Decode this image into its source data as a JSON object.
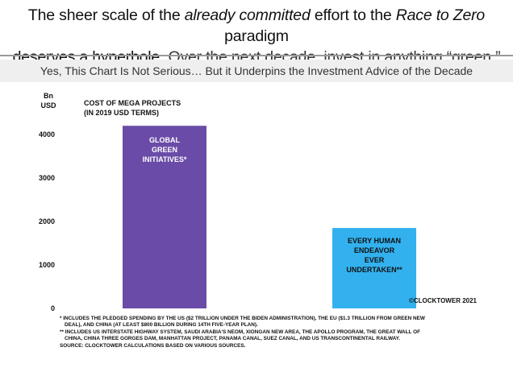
{
  "headline": {
    "part1": "The sheer scale of the ",
    "part2_italic": "already committed",
    "part3": " effort to the ",
    "part4_italic": "Race to Zero",
    "part5": " paradigm",
    "part6": "deserves a hyperbole.",
    "part7": " Over the next decade, invest in anything “green.”"
  },
  "subtitle": "Yes, This Chart Is Not Serious… But it Underpins the Investment Advice of the Decade",
  "colors": {
    "bar_green": "#6a4ca8",
    "bar_human": "#33b1ef",
    "rule": "#9a9a9a",
    "band": "#efefef"
  },
  "chart_data": {
    "type": "bar",
    "title": "COST OF MEGA PROJECTS (IN 2019 USD TERMS)",
    "title_lines": [
      "COST OF MEGA PROJECTS",
      "(IN 2019 USD TERMS)"
    ],
    "ylabel_lines": [
      "Bn",
      "USD"
    ],
    "ylim": [
      0,
      4500
    ],
    "yticks": [
      0,
      1000,
      2000,
      3000,
      4000
    ],
    "grid": false,
    "categories": [
      "GLOBAL GREEN INITIATIVES*",
      "EVERY HUMAN ENDEAVOR EVER UNDERTAKEN**"
    ],
    "values": [
      4200,
      1850
    ],
    "bar_label_lines": [
      [
        "GLOBAL",
        "GREEN",
        "INITIATIVES*"
      ],
      [
        "EVERY HUMAN",
        "ENDEAVOR",
        "EVER",
        "UNDERTAKEN**"
      ]
    ]
  },
  "credit": "©CLOCKTOWER 2021",
  "footnotes": [
    "* INCLUDES THE PLEDGED SPENDING BY THE US ($2 TRILLION UNDER THE BIDEN ADMINISTRATION), THE EU ($1.3 TRILLION FROM GREEN NEW",
    "DEAL), AND CHINA (AT LEAST $800 BILLION DURING 14TH FIVE-YEAR PLAN).",
    "** INCLUDES US INTERSTATE HIGHWAY SYSTEM, SAUDI ARABIA'S NEOM, XIONGAN NEW AREA, THE APOLLO PROGRAM, THE GREAT WALL OF",
    "CHINA, CHINA THREE GORGES DAM, MANHATTAN PROJECT, PANAMA CANAL, SUEZ CANAL, AND US TRANSCONTINENTAL RAILWAY.",
    "SOURCE: CLOCKTOWER CALCULATIONS BASED ON VARIOUS SOURCES."
  ]
}
